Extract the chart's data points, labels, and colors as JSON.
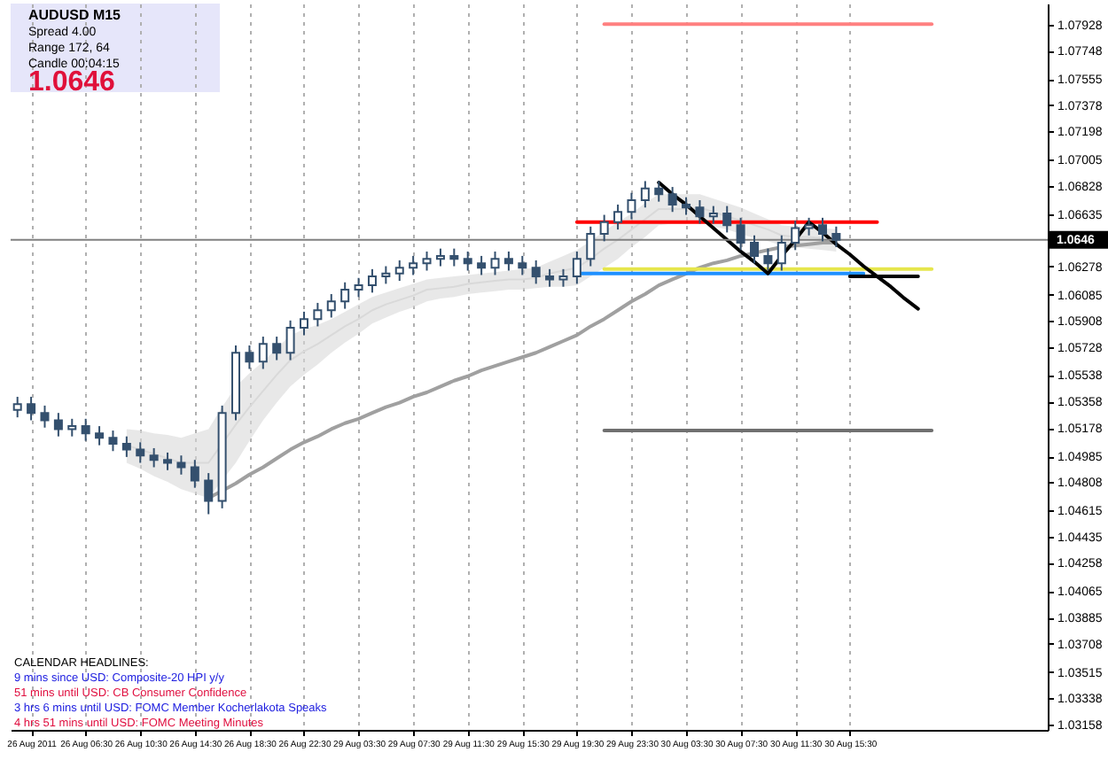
{
  "chart_data": {
    "type": "candlestick",
    "color": "#34506e",
    "categories": [
      null,
      "26 Aug 2011",
      null,
      null,
      null,
      "26 Aug 06:30",
      null,
      null,
      null,
      "26 Aug 10:30",
      null,
      null,
      null,
      "26 Aug 14:30",
      null,
      null,
      null,
      "26 Aug 18:30",
      null,
      null,
      null,
      "26 Aug 22:30",
      null,
      null,
      null,
      "29 Aug 03:30",
      null,
      null,
      null,
      "29 Aug 07:30",
      null,
      null,
      null,
      "29 Aug 11:30",
      null,
      null,
      null,
      "29 Aug 15:30",
      null,
      null,
      null,
      "29 Aug 19:30",
      null,
      null,
      null,
      "29 Aug 23:30",
      null,
      null,
      null,
      "30 Aug 03:30",
      null,
      null,
      null,
      "30 Aug 07:30",
      null,
      null,
      null,
      "30 Aug 11:30",
      null,
      null,
      null,
      "30 Aug 15:30",
      null,
      null,
      null,
      null,
      null,
      null,
      null,
      null,
      null,
      null,
      null,
      null,
      null,
      null
    ],
    "ohlc": [
      [
        1.053,
        1.0539,
        1.0525,
        1.0534
      ],
      [
        1.0534,
        1.0539,
        1.0523,
        1.0528
      ],
      [
        1.0528,
        1.0533,
        1.0518,
        1.0523
      ],
      [
        1.0523,
        1.0528,
        1.0512,
        1.0517
      ],
      [
        1.0517,
        1.0524,
        1.0512,
        1.0519
      ],
      [
        1.0519,
        1.0524,
        1.0509,
        1.0514
      ],
      [
        1.0514,
        1.0519,
        1.0506,
        1.0511
      ],
      [
        1.0511,
        1.0516,
        1.0502,
        1.0507
      ],
      [
        1.0507,
        1.0512,
        1.0498,
        1.0503
      ],
      [
        1.0503,
        1.0508,
        1.0494,
        1.0499
      ],
      [
        1.0499,
        1.0504,
        1.0491,
        1.0496
      ],
      [
        1.0496,
        1.0501,
        1.0489,
        1.0494
      ],
      [
        1.0494,
        1.0499,
        1.0486,
        1.0491
      ],
      [
        1.0491,
        1.0496,
        1.0477,
        1.0482
      ],
      [
        1.0482,
        1.0487,
        1.0459,
        1.0468
      ],
      [
        1.0468,
        1.0533,
        1.0463,
        1.0528
      ],
      [
        1.0528,
        1.0574,
        1.0523,
        1.0569
      ],
      [
        1.0569,
        1.0574,
        1.0558,
        1.0563
      ],
      [
        1.0563,
        1.058,
        1.0558,
        1.0575
      ],
      [
        1.0575,
        1.058,
        1.0564,
        1.0569
      ],
      [
        1.0569,
        1.0591,
        1.0564,
        1.0586
      ],
      [
        1.0586,
        1.0597,
        1.0581,
        1.0592
      ],
      [
        1.0592,
        1.0603,
        1.0587,
        1.0598
      ],
      [
        1.0598,
        1.0609,
        1.0593,
        1.0604
      ],
      [
        1.0604,
        1.0617,
        1.0599,
        1.0612
      ],
      [
        1.0612,
        1.062,
        1.0607,
        1.0615
      ],
      [
        1.0615,
        1.0626,
        1.061,
        1.0621
      ],
      [
        1.0621,
        1.0628,
        1.0616,
        1.0623
      ],
      [
        1.0623,
        1.0632,
        1.0618,
        1.0627
      ],
      [
        1.0627,
        1.0635,
        1.0622,
        1.063
      ],
      [
        1.063,
        1.0638,
        1.0625,
        1.0633
      ],
      [
        1.0633,
        1.064,
        1.0628,
        1.0635
      ],
      [
        1.0635,
        1.064,
        1.0628,
        1.0633
      ],
      [
        1.0633,
        1.0638,
        1.0625,
        1.063
      ],
      [
        1.063,
        1.0635,
        1.0622,
        1.0627
      ],
      [
        1.0627,
        1.0638,
        1.0622,
        1.0633
      ],
      [
        1.0633,
        1.0638,
        1.0625,
        1.063
      ],
      [
        1.063,
        1.0635,
        1.0622,
        1.0627
      ],
      [
        1.0627,
        1.0632,
        1.0616,
        1.0621
      ],
      [
        1.0621,
        1.0626,
        1.0614,
        1.0619
      ],
      [
        1.0619,
        1.0626,
        1.0614,
        1.0621
      ],
      [
        1.0621,
        1.0638,
        1.0616,
        1.0633
      ],
      [
        1.0633,
        1.0655,
        1.0628,
        1.065
      ],
      [
        1.065,
        1.0663,
        1.0645,
        1.0658
      ],
      [
        1.0658,
        1.067,
        1.0653,
        1.0665
      ],
      [
        1.0665,
        1.0678,
        1.066,
        1.0673
      ],
      [
        1.0673,
        1.0686,
        1.0668,
        1.0681
      ],
      [
        1.0681,
        1.0686,
        1.0672,
        1.0677
      ],
      [
        1.0677,
        1.0682,
        1.0665,
        1.067
      ],
      [
        1.067,
        1.0675,
        1.0663,
        1.0668
      ],
      [
        1.0668,
        1.0673,
        1.0657,
        1.0662
      ],
      [
        1.0662,
        1.0669,
        1.0657,
        1.0664
      ],
      [
        1.0664,
        1.0669,
        1.0651,
        1.0656
      ],
      [
        1.0656,
        1.0661,
        1.0639,
        1.0644
      ],
      [
        1.0644,
        1.0649,
        1.063,
        1.0635
      ],
      [
        1.0635,
        1.064,
        1.0625,
        1.063
      ],
      [
        1.063,
        1.0649,
        1.0625,
        1.0644
      ],
      [
        1.0644,
        1.0659,
        1.0639,
        1.0654
      ],
      [
        1.0654,
        1.0661,
        1.0649,
        1.0656
      ],
      [
        1.0656,
        1.0661,
        1.0645,
        1.065
      ],
      [
        1.065,
        1.0655,
        1.0641,
        1.0646
      ],
      null,
      null,
      null,
      null,
      null,
      null,
      null,
      null,
      null,
      null,
      null,
      null,
      null,
      null,
      null
    ],
    "series": [
      {
        "type": "line",
        "color": "#d9d9d9",
        "values": [
          null,
          null,
          null,
          null,
          null,
          null,
          null,
          null,
          1.0506,
          1.0503,
          1.05,
          1.0497,
          1.0494,
          1.0494,
          1.0494,
          1.0507,
          1.052,
          1.0532,
          1.0543,
          1.0554,
          1.0564,
          1.057,
          1.0575,
          1.0581,
          1.0587,
          1.0592,
          1.0598,
          1.0602,
          1.0605,
          1.0608,
          1.0612,
          1.0613,
          1.0614,
          1.0616,
          1.0617,
          1.0618,
          1.0619,
          1.0619,
          1.062,
          1.0623,
          1.0625,
          1.0627,
          1.0633,
          1.064,
          1.0646,
          1.0653,
          1.066,
          1.0667,
          1.0667,
          1.0667,
          1.0668,
          1.0665,
          1.0662,
          1.0659,
          1.0656,
          1.0653,
          1.0649,
          1.0648,
          1.0648,
          1.0647,
          1.0646,
          null,
          null,
          null,
          null,
          null,
          null,
          null,
          null,
          null,
          null,
          null,
          null,
          null,
          null,
          null
        ],
        "lower": [
          null,
          null,
          null,
          null,
          null,
          null,
          null,
          null,
          1.0494,
          1.049,
          1.0485,
          1.0481,
          1.0476,
          1.0473,
          1.047,
          1.0482,
          1.0494,
          1.0509,
          1.0523,
          1.0535,
          1.0546,
          1.0554,
          1.0561,
          1.0569,
          1.0576,
          1.0582,
          1.0589,
          1.0593,
          1.0597,
          1.06,
          1.0604,
          1.0606,
          1.0607,
          1.0609,
          1.061,
          1.0611,
          1.0612,
          1.0612,
          1.0613,
          1.0614,
          1.0614,
          1.0615,
          1.0621,
          1.0627,
          1.0633,
          1.0641,
          1.0648,
          1.0656,
          1.0657,
          1.0657,
          1.0658,
          1.0655,
          1.0653,
          1.065,
          1.0647,
          1.0645,
          1.0642,
          1.0641,
          1.064,
          1.0639,
          1.0638,
          null,
          null,
          null,
          null,
          null,
          null,
          null,
          null,
          null,
          null,
          null,
          null,
          null,
          null,
          null
        ],
        "upper": [
          null,
          null,
          null,
          null,
          null,
          null,
          null,
          null,
          1.0517,
          1.0516,
          1.0514,
          1.0513,
          1.0511,
          1.0514,
          1.0517,
          1.0532,
          1.0546,
          1.0555,
          1.0563,
          1.0572,
          1.0581,
          1.0585,
          1.0588,
          1.0592,
          1.0597,
          1.0602,
          1.0607,
          1.061,
          1.0613,
          1.0616,
          1.0619,
          1.062,
          1.0621,
          1.0622,
          1.0623,
          1.0624,
          1.0625,
          1.0626,
          1.0627,
          1.0631,
          1.0635,
          1.0639,
          1.0645,
          1.0652,
          1.0658,
          1.0664,
          1.0671,
          1.0677,
          1.0677,
          1.0677,
          1.0677,
          1.0674,
          1.0671,
          1.0668,
          1.0664,
          1.066,
          1.0656,
          1.0655,
          1.0655,
          1.0654,
          1.0653,
          null,
          null,
          null,
          null,
          null,
          null,
          null,
          null,
          null,
          null,
          null,
          null,
          null,
          null,
          null
        ]
      },
      {
        "type": "line",
        "color": "#a0a0a0",
        "values": [
          null,
          null,
          null,
          null,
          null,
          null,
          null,
          null,
          null,
          null,
          null,
          null,
          null,
          null,
          1.047,
          1.0475,
          1.048,
          1.0486,
          1.0491,
          1.0497,
          1.0503,
          1.0508,
          1.0512,
          1.0517,
          1.0521,
          1.0524,
          1.0528,
          1.0532,
          1.0535,
          1.0539,
          1.0542,
          1.0546,
          1.055,
          1.0553,
          1.0557,
          1.056,
          1.0563,
          1.0566,
          1.0569,
          1.0573,
          1.0577,
          1.0581,
          1.0587,
          1.0592,
          1.0598,
          1.0604,
          1.0609,
          1.0615,
          1.0619,
          1.0623,
          1.0627,
          1.063,
          1.0632,
          1.0635,
          1.0637,
          1.0639,
          1.0641,
          1.0642,
          1.0643,
          1.0644,
          1.0644,
          null,
          null,
          null,
          null,
          null,
          null,
          null,
          null,
          null,
          null,
          null,
          null,
          null,
          null,
          null
        ]
      },
      {
        "type": "line",
        "color": "#ff0000",
        "values": [
          null,
          null,
          null,
          null,
          null,
          null,
          null,
          null,
          null,
          null,
          null,
          null,
          null,
          null,
          null,
          null,
          null,
          null,
          null,
          null,
          null,
          null,
          null,
          null,
          null,
          null,
          null,
          null,
          null,
          null,
          null,
          null,
          null,
          null,
          null,
          null,
          null,
          null,
          null,
          null,
          null,
          1.0658,
          1.0658,
          1.0658,
          1.0658,
          1.0658,
          1.0658,
          1.0658,
          1.0658,
          1.0658,
          1.0658,
          1.0658,
          1.0658,
          1.0658,
          1.0658,
          1.0658,
          1.0658,
          1.0658,
          1.0658,
          1.0658,
          1.0658,
          1.0658,
          1.0658,
          1.0658,
          null,
          null,
          null,
          null,
          null,
          null,
          null,
          null,
          null,
          null,
          null,
          null
        ]
      },
      {
        "type": "line",
        "color": "#1e90ff",
        "values": [
          null,
          null,
          null,
          null,
          null,
          null,
          null,
          null,
          null,
          null,
          null,
          null,
          null,
          null,
          null,
          null,
          null,
          null,
          null,
          null,
          null,
          null,
          null,
          null,
          null,
          null,
          null,
          null,
          null,
          null,
          null,
          null,
          null,
          null,
          null,
          null,
          null,
          null,
          null,
          null,
          null,
          1.0623,
          1.0623,
          1.0623,
          1.0623,
          1.0623,
          1.0623,
          1.0623,
          1.0623,
          1.0623,
          1.0623,
          1.0623,
          1.0623,
          1.0623,
          1.0623,
          1.0623,
          1.0623,
          1.0623,
          1.0623,
          1.0623,
          1.0623,
          1.0623,
          1.0623,
          null,
          null,
          null,
          null,
          null,
          null,
          null,
          null,
          null,
          null,
          null,
          null,
          null
        ]
      },
      {
        "type": "line",
        "color": "#e6e64c",
        "values": [
          null,
          null,
          null,
          null,
          null,
          null,
          null,
          null,
          null,
          null,
          null,
          null,
          null,
          null,
          null,
          null,
          null,
          null,
          null,
          null,
          null,
          null,
          null,
          null,
          null,
          null,
          null,
          null,
          null,
          null,
          null,
          null,
          null,
          null,
          null,
          null,
          null,
          null,
          null,
          null,
          null,
          null,
          null,
          1.0626,
          1.0626,
          1.0626,
          1.0626,
          1.0626,
          1.0626,
          1.0626,
          1.0626,
          1.0626,
          1.0626,
          1.0626,
          1.0626,
          1.0626,
          1.0626,
          1.0626,
          1.0626,
          1.0626,
          1.0626,
          1.0626,
          1.0626,
          1.0626,
          1.0626,
          1.0626,
          1.0626,
          1.0626,
          null,
          null,
          null,
          null,
          null,
          null,
          null,
          null
        ]
      },
      {
        "type": "line",
        "color": "#000000",
        "values": [
          null,
          null,
          null,
          null,
          null,
          null,
          null,
          null,
          null,
          null,
          null,
          null,
          null,
          null,
          null,
          null,
          null,
          null,
          null,
          null,
          null,
          null,
          null,
          null,
          null,
          null,
          null,
          null,
          null,
          null,
          null,
          null,
          null,
          null,
          null,
          null,
          null,
          null,
          null,
          null,
          null,
          null,
          null,
          null,
          null,
          null,
          null,
          null,
          null,
          null,
          null,
          null,
          null,
          null,
          null,
          null,
          null,
          null,
          null,
          null,
          null,
          1.0621,
          1.0621,
          1.0621,
          1.0621,
          1.0621,
          1.0621,
          null,
          null,
          null,
          null,
          null,
          null,
          null,
          null,
          null
        ]
      },
      {
        "type": "line",
        "color": "#ff8080",
        "values": [
          null,
          null,
          null,
          null,
          null,
          null,
          null,
          null,
          null,
          null,
          null,
          null,
          null,
          null,
          null,
          null,
          null,
          null,
          null,
          null,
          null,
          null,
          null,
          null,
          null,
          null,
          null,
          null,
          null,
          null,
          null,
          null,
          null,
          null,
          null,
          null,
          null,
          null,
          null,
          null,
          null,
          null,
          null,
          1.0793,
          1.0793,
          1.0793,
          1.0793,
          1.0793,
          1.0793,
          1.0793,
          1.0793,
          1.0793,
          1.0793,
          1.0793,
          1.0793,
          1.0793,
          1.0793,
          1.0793,
          1.0793,
          1.0793,
          1.0793,
          1.0793,
          1.0793,
          1.0793,
          1.0793,
          1.0793,
          1.0793,
          1.0793,
          null,
          null,
          null,
          null,
          null,
          null,
          null,
          null
        ]
      },
      {
        "type": "line",
        "color": "#707070",
        "values": [
          null,
          null,
          null,
          null,
          null,
          null,
          null,
          null,
          null,
          null,
          null,
          null,
          null,
          null,
          null,
          null,
          null,
          null,
          null,
          null,
          null,
          null,
          null,
          null,
          null,
          null,
          null,
          null,
          null,
          null,
          null,
          null,
          null,
          null,
          null,
          null,
          null,
          null,
          null,
          null,
          null,
          null,
          null,
          1.0516,
          1.0516,
          1.0516,
          1.0516,
          1.0516,
          1.0516,
          1.0516,
          1.0516,
          1.0516,
          1.0516,
          1.0516,
          1.0516,
          1.0516,
          1.0516,
          1.0516,
          1.0516,
          1.0516,
          1.0516,
          1.0516,
          1.0516,
          1.0516,
          1.0516,
          1.0516,
          1.0516,
          1.0516,
          null,
          null,
          null,
          null,
          null,
          null,
          null,
          null
        ]
      },
      {
        "type": "line",
        "color": "#000000",
        "values": [
          null,
          null,
          null,
          null,
          null,
          null,
          null,
          null,
          null,
          null,
          null,
          null,
          null,
          null,
          null,
          null,
          null,
          null,
          null,
          null,
          null,
          null,
          null,
          null,
          null,
          null,
          null,
          null,
          null,
          null,
          null,
          null,
          null,
          null,
          null,
          null,
          null,
          null,
          null,
          null,
          null,
          null,
          null,
          null,
          null,
          null,
          null,
          1.0685,
          1.0677,
          1.067,
          1.0662,
          1.0654,
          1.0646,
          1.0638,
          1.0631,
          1.0623,
          1.0635,
          1.0646,
          1.0658,
          1.0651,
          1.0643,
          1.0636,
          1.0628,
          1.0621,
          1.0614,
          1.0606,
          1.0599,
          null,
          null,
          null,
          null,
          null,
          null,
          null,
          null,
          null
        ]
      }
    ],
    "ref_lines": [
      {
        "axis": "y",
        "value": 1.0646,
        "label": "1.0646",
        "color": "#808080"
      }
    ],
    "ylim": [
      1.0312,
      1.0807
    ],
    "yticks": [
      1.07928,
      1.07748,
      1.07555,
      1.07378,
      1.07198,
      1.07005,
      1.06828,
      1.06635,
      1.06278,
      1.06085,
      1.05908,
      1.05728,
      1.05538,
      1.05358,
      1.05178,
      1.04985,
      1.04808,
      1.04615,
      1.04435,
      1.04258,
      1.04065,
      1.03885,
      1.03708,
      1.03515,
      1.03338,
      1.03158
    ],
    "grid": "x",
    "annotations": [
      "AUDUSD  M15",
      "Spread  4.00",
      "Range  172, 64",
      "Candle  00:04:15",
      "1.0646",
      "CALENDAR HEADLINES:",
      "9 mins since USD: Composite-20 HPI y/y",
      "51 mins until USD: CB Consumer Confidence",
      "3 hrs 6 mins until USD: FOMC Member Kocherlakota Speaks",
      "4 hrs 51 mins until USD: FOMC Meeting Minutes"
    ]
  }
}
